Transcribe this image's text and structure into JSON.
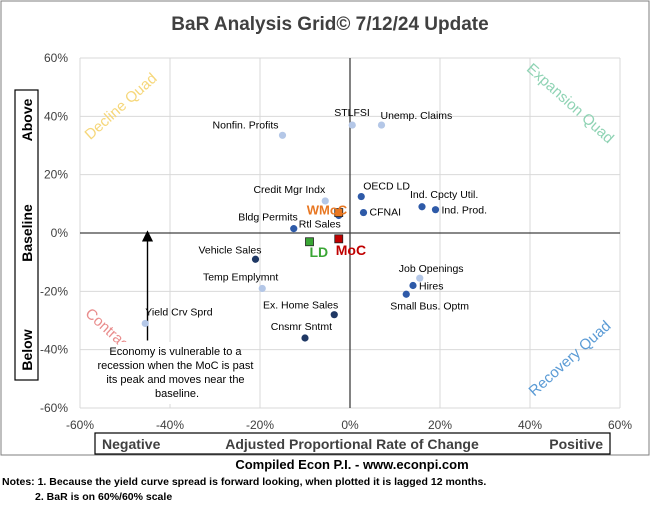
{
  "chart_data": {
    "type": "scatter",
    "title": "BaR Analysis Grid© 7/12/24 Update",
    "xlim": [
      -60,
      60
    ],
    "ylim": [
      -60,
      60
    ],
    "x_ticks": [
      "-60%",
      "-40%",
      "-20%",
      "0%",
      "20%",
      "40%",
      "60%"
    ],
    "y_ticks": [
      "60%",
      "40%",
      "20%",
      "0%",
      "-20%",
      "-40%",
      "-60%"
    ],
    "grid": true,
    "quadrants": {
      "decline": {
        "label": "Decline Quad",
        "color": "#f6d77a"
      },
      "expansion": {
        "label": "Expansion Quad",
        "color": "#8fd3b4"
      },
      "contraction": {
        "label": "Contraction Quad",
        "color": "#e98d8d"
      },
      "recovery": {
        "label": "Recovery Quad",
        "color": "#5b9bd5"
      }
    },
    "points": [
      {
        "label": "STLFSI",
        "x": 0.5,
        "y": 37,
        "color": "#b4c7e7"
      },
      {
        "label": "Unemp. Claims",
        "x": 7,
        "y": 37,
        "color": "#b4c7e7"
      },
      {
        "label": "Nonfin. Profits",
        "x": -15,
        "y": 33.5,
        "color": "#b4c7e7"
      },
      {
        "label": "OECD LD",
        "x": 2.5,
        "y": 12.5,
        "color": "#2e5aa8"
      },
      {
        "label": "Credit Mgr Indx",
        "x": -5.5,
        "y": 11,
        "color": "#b4c7e7"
      },
      {
        "label": "Ind. Cpcty Util.",
        "x": 16,
        "y": 9,
        "color": "#2e5aa8"
      },
      {
        "label": "Ind. Prod.",
        "x": 19,
        "y": 8,
        "color": "#2e5aa8"
      },
      {
        "label": "CFNAI",
        "x": 3,
        "y": 7,
        "color": "#2e5aa8"
      },
      {
        "label": "Rtl Sales",
        "x": -2.5,
        "y": 6,
        "color": "#2e5aa8"
      },
      {
        "label": "Bldg Permits",
        "x": -12.5,
        "y": 1.5,
        "color": "#2e5aa8"
      },
      {
        "label": "Vehicle Sales",
        "x": -21,
        "y": -9,
        "color": "#1f3864"
      },
      {
        "label": "Temp Emplymnt",
        "x": -19.5,
        "y": -19,
        "color": "#b4c7e7"
      },
      {
        "label": "Job Openings",
        "x": 15.5,
        "y": -15.5,
        "color": "#b4c7e7"
      },
      {
        "label": "Hires",
        "x": 14,
        "y": -18,
        "color": "#2e5aa8"
      },
      {
        "label": "Small Bus. Optm",
        "x": 12.5,
        "y": -21,
        "color": "#2e5aa8"
      },
      {
        "label": "Ex. Home Sales",
        "x": -3.5,
        "y": -28,
        "color": "#1f3864"
      },
      {
        "label": "Cnsmr Sntmt",
        "x": -10,
        "y": -36,
        "color": "#1f3864"
      },
      {
        "label": "Yield Crv Sprd",
        "x": -45.5,
        "y": -31,
        "color": "#b4c7e7"
      }
    ],
    "highlight_points": [
      {
        "label": "WMoC",
        "x": -2.5,
        "y": 7,
        "color": "#e87722"
      },
      {
        "label": "LD",
        "x": -9,
        "y": -3,
        "color": "#3aa635"
      },
      {
        "label": "MoC",
        "x": -2.5,
        "y": -2,
        "color": "#c00000"
      }
    ],
    "annotation": {
      "lines": [
        "Economy is vulnerable to a",
        "recession when the MoC is past",
        "its peak and moves near the",
        "baseline."
      ],
      "arrow_from": [
        -45,
        -30
      ],
      "arrow_to": [
        -45,
        -1
      ]
    },
    "side_labels": {
      "above": "Above",
      "baseline": "Baseline",
      "below": "Below"
    },
    "bottom_axis": {
      "negative": "Negative",
      "center": "Adjusted Proportional Rate of Change",
      "positive": "Positive"
    }
  },
  "footer": {
    "credit": "Compiled Econ P.I. - www.econpi.com",
    "note1": "Notes: 1. Because the yield curve spread is forward looking, when plotted it is lagged 12 months.",
    "note2": "2. BaR is on 60%/60% scale"
  }
}
